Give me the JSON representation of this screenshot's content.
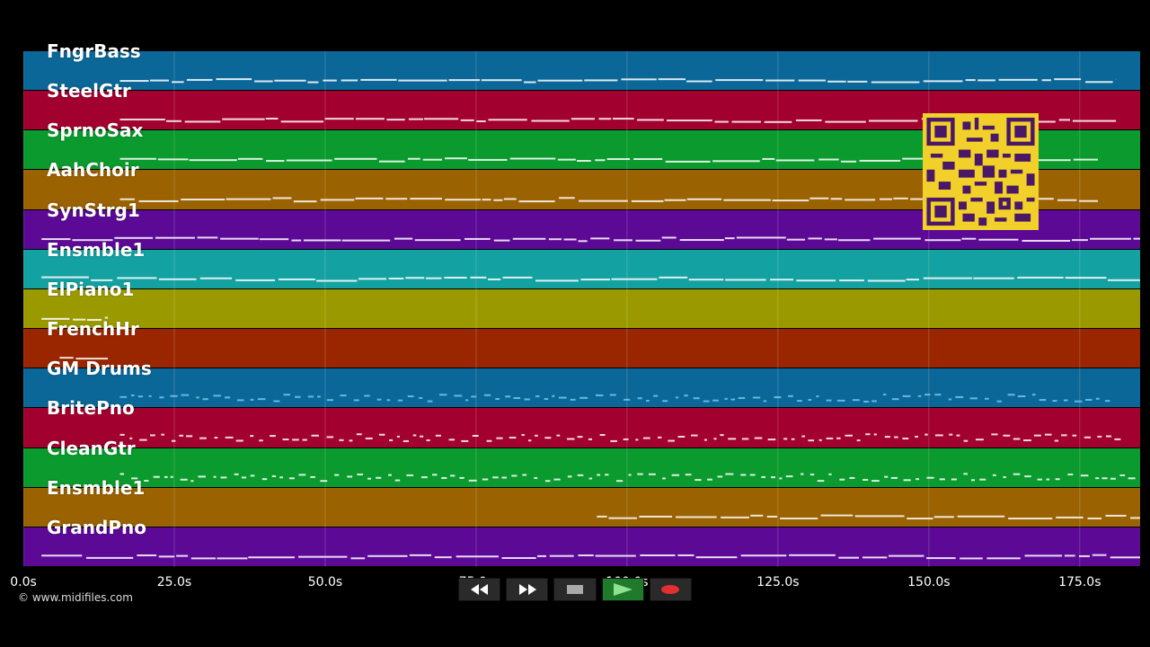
{
  "tracks": [
    {
      "label": "FngrBass",
      "color": "#0b6797"
    },
    {
      "label": "SteelGtr",
      "color": "#a2002f"
    },
    {
      "label": "SprnoSax",
      "color": "#0a9a2d"
    },
    {
      "label": "AahChoir",
      "color": "#9a6200"
    },
    {
      "label": "SynStrg1",
      "color": "#5c0a96"
    },
    {
      "label": "Ensmble1",
      "color": "#14a1a1"
    },
    {
      "label": "ElPiano1",
      "color": "#9a9a00"
    },
    {
      "label": "FrenchHr",
      "color": "#9a2600"
    },
    {
      "label": "GM Drums",
      "color": "#0b6797"
    },
    {
      "label": "BritePno",
      "color": "#a2002f"
    },
    {
      "label": "CleanGtr",
      "color": "#0a9a2d"
    },
    {
      "label": "Ensmble1",
      "color": "#9a6200"
    },
    {
      "label": "GrandPno",
      "color": "#5c0a96"
    }
  ],
  "time_axis": {
    "unit": "s",
    "max": 185,
    "ticks": [
      "0.0s",
      "25.0s",
      "50.0s",
      "75.0s",
      "100.0s",
      "125.0s",
      "150.0s",
      "175.0s"
    ]
  },
  "footer": {
    "copyright": "© www.midifiles.com"
  },
  "controls": {
    "rewind": "rewind-icon",
    "fast_forward": "fast-forward-icon",
    "stop": "stop-icon",
    "play": "play-icon",
    "record": "record-icon"
  }
}
